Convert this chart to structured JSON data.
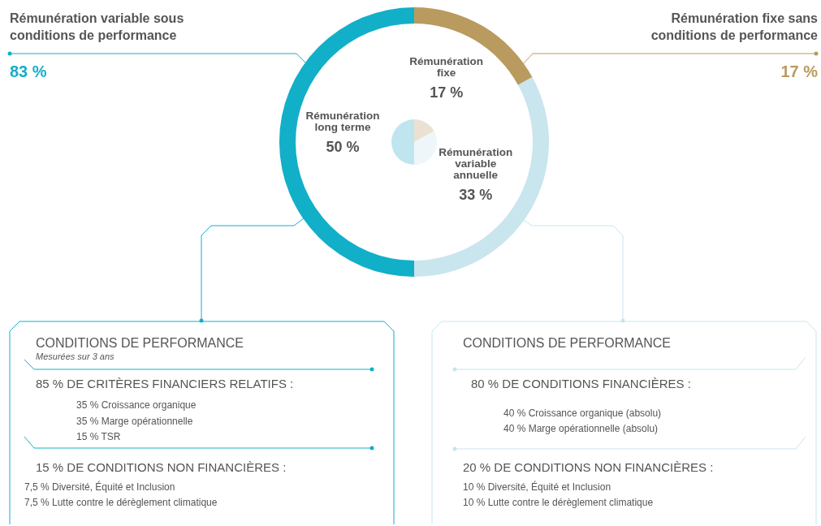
{
  "chart_data": {
    "type": "donut",
    "categories": [
      "Rémunération fixe",
      "Rémunération variable annuelle",
      "Rémunération long terme"
    ],
    "series": [
      {
        "values": [
          17,
          33,
          50
        ],
        "colors": [
          "#b99b5f",
          "#c9e5ee",
          "#12afc8"
        ],
        "value_labels": [
          "17 %",
          "33 %",
          "50 %"
        ]
      },
      {
        "values": [
          17,
          33,
          50
        ],
        "colors": [
          "#eae1d2",
          "#eef6f9",
          "#bfe6ef"
        ]
      }
    ],
    "annotations": [
      "Rémunération variable sous conditions de performance",
      "83 %",
      "Rémunération fixe sans conditions de performance",
      "17 %",
      "CONDITIONS DE PERFORMANCE",
      "Mesurées sur 3 ans",
      "85 % DE CRITÈRES FINANCIERS RELATIFS :",
      "35 % Croissance organique",
      "35 % Marge opérationnelle",
      "15 % TSR",
      "15 % DE CONDITIONS NON FINANCIÈRES :",
      "7,5 % Diversité, Équité et Inclusion",
      "7,5 % Lutte contre le dérèglement climatique",
      "CONDITIONS DE PERFORMANCE",
      "80 % DE CONDITIONS FINANCIÈRES :",
      "40 % Croissance organique (absolu)",
      "40 % Marge opérationnelle (absolu)",
      "20 % DE CONDITIONS NON FINANCIÈRES :",
      "10 % Diversité, Équité et Inclusion",
      "10 % Lutte contre le dérèglement climatique"
    ]
  }
}
